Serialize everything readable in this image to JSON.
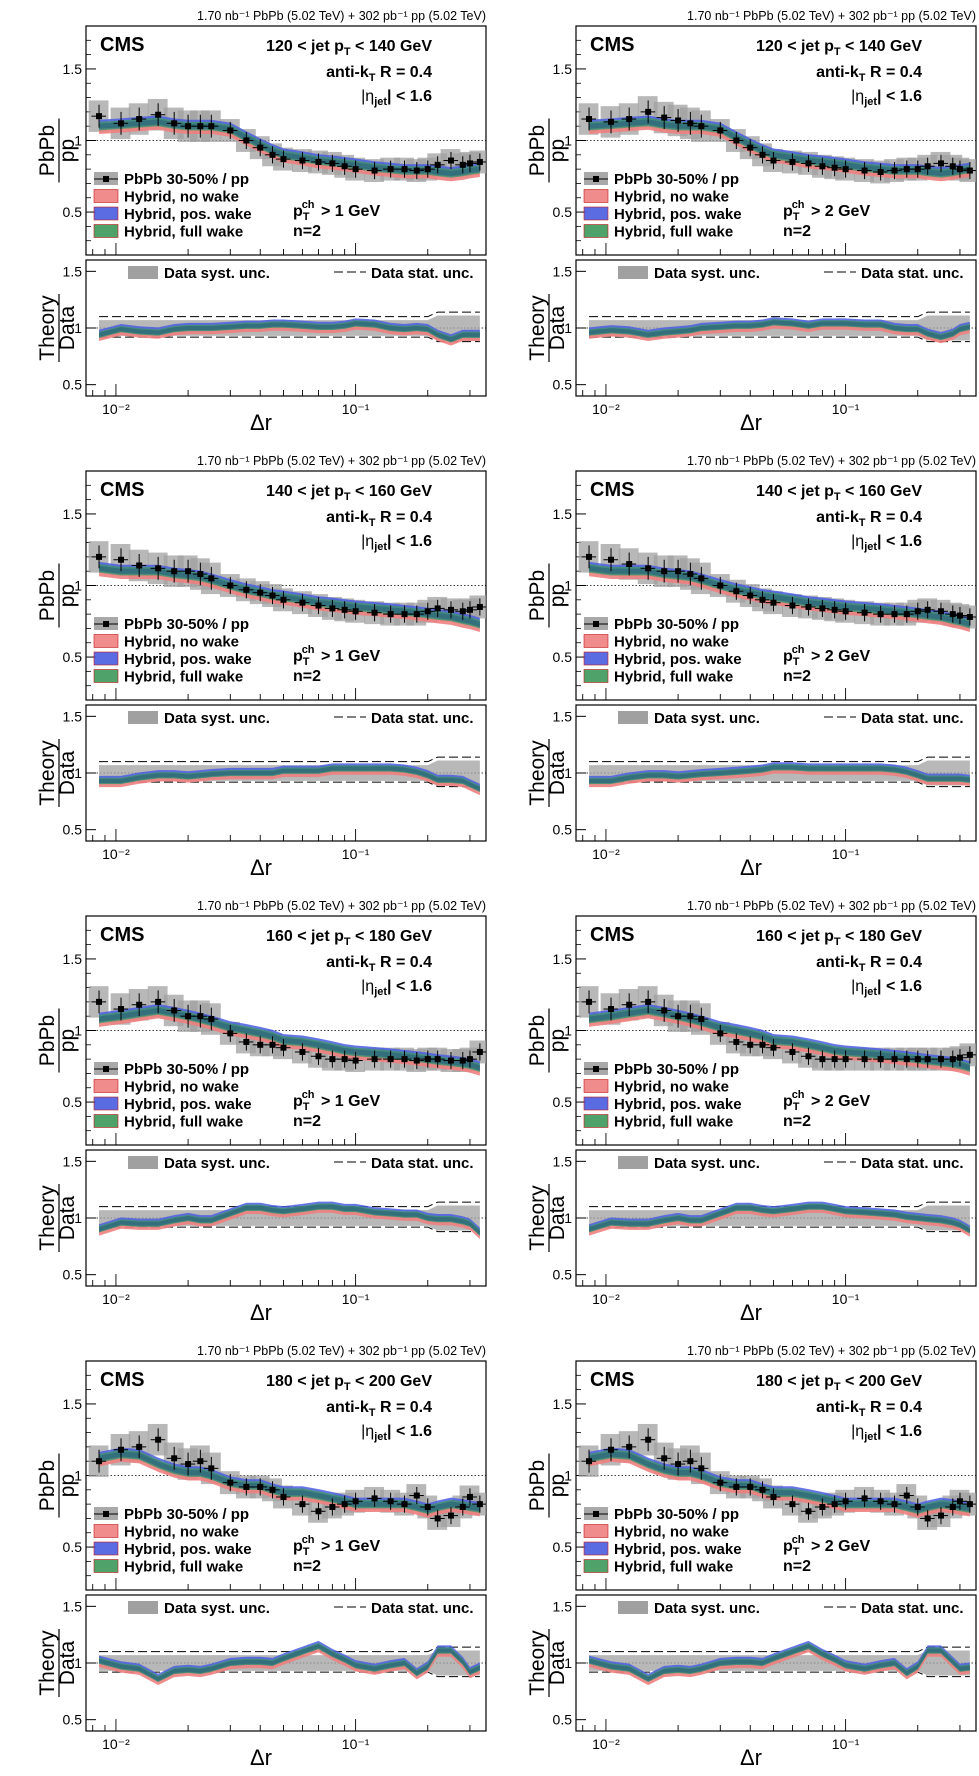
{
  "figure": {
    "lumi_text": "1.70 nb⁻¹ PbPb (5.02 TeV) + 302 pb⁻¹ pp (5.02 TeV)",
    "experiment": "CMS",
    "jet_algo": "anti-kₜ R = 0.4",
    "eta_cut": "|ηjet| < 1.6",
    "ratio_label_top": "PbPb",
    "ratio_label_bottom": "pp",
    "theory_label_top": "Theory",
    "theory_label_bottom": "Data",
    "xlabel": "Δr",
    "n_label": "n=2",
    "legend": {
      "data": "PbPb 30-50% / pp",
      "no_wake": "Hybrid, no wake",
      "pos_wake": "Hybrid, pos. wake",
      "full_wake": "Hybrid, full wake",
      "syst": "Data syst. unc.",
      "stat": "Data stat. unc."
    },
    "colors": {
      "data": "#000000",
      "syst_band": "#a0a0a0",
      "no_wake": "#f08080",
      "pos_wake": "#4a5de0",
      "full_wake": "#3c9a5a",
      "overlap": "#2e6a7a"
    },
    "upper_ylim": [
      0.2,
      1.8
    ],
    "upper_yticks": [
      "0.5",
      "1",
      "1.5"
    ],
    "lower_ylim": [
      0.4,
      1.6
    ],
    "lower_yticks": [
      "0.5",
      "1",
      "1.5"
    ],
    "xlim": [
      0.0075,
      0.35
    ],
    "xscale": "log",
    "xtick_labels": [
      "10⁻²",
      "10⁻¹"
    ]
  },
  "chart_data": [
    {
      "type": "line",
      "pt_bin": "120 < jet pT < 140 GeV",
      "track_cut": "pT ch > 1 GeV",
      "x": [
        0.0085,
        0.0105,
        0.0125,
        0.015,
        0.0175,
        0.02,
        0.0225,
        0.025,
        0.03,
        0.035,
        0.04,
        0.045,
        0.05,
        0.06,
        0.07,
        0.08,
        0.09,
        0.1,
        0.12,
        0.14,
        0.16,
        0.18,
        0.2,
        0.22,
        0.25,
        0.28,
        0.3,
        0.33
      ],
      "data_y": [
        1.17,
        1.12,
        1.15,
        1.18,
        1.12,
        1.1,
        1.1,
        1.1,
        1.07,
        1.0,
        0.95,
        0.9,
        0.87,
        0.86,
        0.85,
        0.84,
        0.82,
        0.8,
        0.79,
        0.8,
        0.8,
        0.79,
        0.8,
        0.83,
        0.86,
        0.83,
        0.84,
        0.85
      ],
      "theory_y": [
        1.1,
        1.11,
        1.12,
        1.13,
        1.11,
        1.1,
        1.1,
        1.1,
        1.08,
        1.02,
        0.97,
        0.93,
        0.9,
        0.88,
        0.86,
        0.85,
        0.84,
        0.83,
        0.81,
        0.8,
        0.79,
        0.79,
        0.79,
        0.78,
        0.77,
        0.78,
        0.79,
        0.8
      ],
      "ratio_y": [
        0.94,
        0.99,
        0.97,
        0.96,
        0.99,
        1.0,
        1.0,
        1.0,
        1.01,
        1.02,
        1.02,
        1.03,
        1.03,
        1.02,
        1.01,
        1.01,
        1.02,
        1.04,
        1.03,
        1.0,
        0.99,
        1.0,
        0.99,
        0.94,
        0.9,
        0.94,
        0.94,
        0.94
      ]
    },
    {
      "type": "line",
      "pt_bin": "120 < jet pT < 140 GeV",
      "track_cut": "pT ch > 2 GeV",
      "x": [
        0.0085,
        0.0105,
        0.0125,
        0.015,
        0.0175,
        0.02,
        0.0225,
        0.025,
        0.03,
        0.035,
        0.04,
        0.045,
        0.05,
        0.06,
        0.07,
        0.08,
        0.09,
        0.1,
        0.12,
        0.14,
        0.16,
        0.18,
        0.2,
        0.22,
        0.25,
        0.28,
        0.3,
        0.33
      ],
      "data_y": [
        1.15,
        1.13,
        1.15,
        1.2,
        1.16,
        1.14,
        1.12,
        1.1,
        1.07,
        1.0,
        0.95,
        0.9,
        0.86,
        0.85,
        0.84,
        0.82,
        0.81,
        0.8,
        0.79,
        0.78,
        0.79,
        0.8,
        0.8,
        0.82,
        0.84,
        0.82,
        0.8,
        0.79
      ],
      "theory_y": [
        1.1,
        1.11,
        1.12,
        1.13,
        1.11,
        1.1,
        1.1,
        1.1,
        1.08,
        1.02,
        0.97,
        0.93,
        0.9,
        0.88,
        0.86,
        0.85,
        0.84,
        0.83,
        0.81,
        0.8,
        0.79,
        0.79,
        0.79,
        0.78,
        0.77,
        0.78,
        0.79,
        0.8
      ],
      "ratio_y": [
        0.96,
        0.98,
        0.97,
        0.94,
        0.96,
        0.97,
        0.98,
        1.0,
        1.01,
        1.02,
        1.02,
        1.03,
        1.05,
        1.04,
        1.02,
        1.04,
        1.04,
        1.04,
        1.03,
        1.03,
        1.0,
        0.99,
        0.99,
        0.95,
        0.92,
        0.95,
        0.99,
        1.01
      ]
    },
    {
      "type": "line",
      "pt_bin": "140 < jet pT < 160 GeV",
      "track_cut": "pT ch > 1 GeV",
      "x": [
        0.0085,
        0.0105,
        0.0125,
        0.015,
        0.0175,
        0.02,
        0.0225,
        0.025,
        0.03,
        0.035,
        0.04,
        0.045,
        0.05,
        0.06,
        0.07,
        0.08,
        0.09,
        0.1,
        0.12,
        0.14,
        0.16,
        0.18,
        0.2,
        0.22,
        0.25,
        0.28,
        0.3,
        0.33
      ],
      "data_y": [
        1.2,
        1.18,
        1.14,
        1.12,
        1.1,
        1.1,
        1.08,
        1.05,
        1.0,
        0.97,
        0.95,
        0.93,
        0.9,
        0.88,
        0.86,
        0.84,
        0.83,
        0.82,
        0.81,
        0.8,
        0.8,
        0.8,
        0.82,
        0.84,
        0.83,
        0.82,
        0.83,
        0.85
      ],
      "theory_y": [
        1.12,
        1.1,
        1.1,
        1.1,
        1.08,
        1.07,
        1.06,
        1.04,
        1.0,
        0.97,
        0.95,
        0.93,
        0.92,
        0.9,
        0.88,
        0.87,
        0.86,
        0.85,
        0.84,
        0.83,
        0.82,
        0.81,
        0.8,
        0.79,
        0.78,
        0.76,
        0.75,
        0.73
      ],
      "ratio_y": [
        0.93,
        0.93,
        0.96,
        0.98,
        0.98,
        0.97,
        0.98,
        0.99,
        1.0,
        1.0,
        1.0,
        1.0,
        1.02,
        1.02,
        1.02,
        1.04,
        1.04,
        1.04,
        1.04,
        1.04,
        1.03,
        1.01,
        0.98,
        0.94,
        0.94,
        0.93,
        0.9,
        0.86
      ]
    },
    {
      "type": "line",
      "pt_bin": "140 < jet pT < 160 GeV",
      "track_cut": "pT ch > 2 GeV",
      "x": [
        0.0085,
        0.0105,
        0.0125,
        0.015,
        0.0175,
        0.02,
        0.0225,
        0.025,
        0.03,
        0.035,
        0.04,
        0.045,
        0.05,
        0.06,
        0.07,
        0.08,
        0.09,
        0.1,
        0.12,
        0.14,
        0.16,
        0.18,
        0.2,
        0.22,
        0.25,
        0.28,
        0.3,
        0.33
      ],
      "data_y": [
        1.2,
        1.18,
        1.15,
        1.12,
        1.1,
        1.1,
        1.08,
        1.05,
        1.0,
        0.96,
        0.93,
        0.9,
        0.88,
        0.86,
        0.85,
        0.84,
        0.83,
        0.82,
        0.81,
        0.8,
        0.8,
        0.8,
        0.82,
        0.83,
        0.82,
        0.8,
        0.79,
        0.78
      ],
      "theory_y": [
        1.12,
        1.1,
        1.1,
        1.1,
        1.08,
        1.07,
        1.06,
        1.04,
        1.0,
        0.97,
        0.95,
        0.93,
        0.92,
        0.9,
        0.88,
        0.87,
        0.86,
        0.85,
        0.84,
        0.83,
        0.82,
        0.81,
        0.8,
        0.79,
        0.78,
        0.76,
        0.75,
        0.73
      ],
      "ratio_y": [
        0.93,
        0.93,
        0.96,
        0.98,
        0.98,
        0.97,
        0.98,
        0.99,
        1.0,
        1.01,
        1.02,
        1.03,
        1.05,
        1.05,
        1.04,
        1.04,
        1.04,
        1.04,
        1.04,
        1.04,
        1.03,
        1.01,
        0.98,
        0.95,
        0.95,
        0.95,
        0.95,
        0.94
      ]
    },
    {
      "type": "line",
      "pt_bin": "160 < jet pT < 180 GeV",
      "track_cut": "pT ch > 1 GeV",
      "x": [
        0.0085,
        0.0105,
        0.0125,
        0.015,
        0.0175,
        0.02,
        0.0225,
        0.025,
        0.03,
        0.035,
        0.04,
        0.045,
        0.05,
        0.06,
        0.07,
        0.08,
        0.09,
        0.1,
        0.12,
        0.14,
        0.16,
        0.18,
        0.2,
        0.22,
        0.25,
        0.28,
        0.3,
        0.33
      ],
      "data_y": [
        1.2,
        1.15,
        1.18,
        1.2,
        1.14,
        1.1,
        1.1,
        1.08,
        0.98,
        0.92,
        0.9,
        0.9,
        0.88,
        0.85,
        0.82,
        0.8,
        0.8,
        0.79,
        0.8,
        0.8,
        0.8,
        0.79,
        0.8,
        0.8,
        0.79,
        0.79,
        0.8,
        0.85
      ],
      "theory_y": [
        1.08,
        1.1,
        1.12,
        1.14,
        1.12,
        1.1,
        1.08,
        1.06,
        1.02,
        1.0,
        0.98,
        0.96,
        0.93,
        0.92,
        0.9,
        0.88,
        0.86,
        0.85,
        0.84,
        0.83,
        0.82,
        0.81,
        0.8,
        0.79,
        0.78,
        0.77,
        0.76,
        0.74
      ],
      "ratio_y": [
        0.9,
        0.96,
        0.95,
        0.95,
        0.98,
        1.0,
        0.98,
        0.98,
        1.04,
        1.09,
        1.09,
        1.07,
        1.06,
        1.08,
        1.1,
        1.1,
        1.08,
        1.08,
        1.05,
        1.04,
        1.03,
        1.03,
        1.0,
        0.99,
        0.99,
        0.97,
        0.95,
        0.87
      ]
    },
    {
      "type": "line",
      "pt_bin": "160 < jet pT < 180 GeV",
      "track_cut": "pT ch > 2 GeV",
      "x": [
        0.0085,
        0.0105,
        0.0125,
        0.015,
        0.0175,
        0.02,
        0.0225,
        0.025,
        0.03,
        0.035,
        0.04,
        0.045,
        0.05,
        0.06,
        0.07,
        0.08,
        0.09,
        0.1,
        0.12,
        0.14,
        0.16,
        0.18,
        0.2,
        0.22,
        0.25,
        0.28,
        0.3,
        0.33
      ],
      "data_y": [
        1.2,
        1.15,
        1.18,
        1.2,
        1.14,
        1.1,
        1.1,
        1.08,
        0.98,
        0.92,
        0.9,
        0.9,
        0.88,
        0.85,
        0.82,
        0.8,
        0.8,
        0.8,
        0.8,
        0.8,
        0.8,
        0.8,
        0.8,
        0.8,
        0.8,
        0.8,
        0.81,
        0.83
      ],
      "theory_y": [
        1.08,
        1.1,
        1.12,
        1.14,
        1.12,
        1.1,
        1.08,
        1.06,
        1.02,
        1.0,
        0.98,
        0.96,
        0.93,
        0.92,
        0.9,
        0.88,
        0.86,
        0.85,
        0.84,
        0.83,
        0.82,
        0.81,
        0.8,
        0.79,
        0.78,
        0.77,
        0.76,
        0.74
      ],
      "ratio_y": [
        0.9,
        0.96,
        0.95,
        0.95,
        0.98,
        1.0,
        0.98,
        0.98,
        1.04,
        1.09,
        1.09,
        1.07,
        1.06,
        1.08,
        1.1,
        1.1,
        1.08,
        1.06,
        1.05,
        1.04,
        1.03,
        1.01,
        1.0,
        0.99,
        0.98,
        0.96,
        0.94,
        0.89
      ]
    },
    {
      "type": "line",
      "pt_bin": "180 < jet pT < 200 GeV",
      "track_cut": "pT ch > 1 GeV",
      "x": [
        0.0085,
        0.0105,
        0.0125,
        0.015,
        0.0175,
        0.02,
        0.0225,
        0.025,
        0.03,
        0.035,
        0.04,
        0.045,
        0.05,
        0.06,
        0.07,
        0.08,
        0.09,
        0.1,
        0.12,
        0.14,
        0.16,
        0.18,
        0.2,
        0.22,
        0.25,
        0.28,
        0.3,
        0.33
      ],
      "data_y": [
        1.1,
        1.18,
        1.2,
        1.25,
        1.12,
        1.08,
        1.1,
        1.05,
        0.95,
        0.92,
        0.92,
        0.9,
        0.85,
        0.8,
        0.75,
        0.78,
        0.8,
        0.82,
        0.84,
        0.82,
        0.8,
        0.86,
        0.78,
        0.7,
        0.72,
        0.78,
        0.85,
        0.8
      ],
      "theory_y": [
        1.12,
        1.15,
        1.14,
        1.08,
        1.04,
        1.02,
        1.02,
        1.0,
        0.95,
        0.93,
        0.93,
        0.9,
        0.88,
        0.88,
        0.86,
        0.84,
        0.82,
        0.8,
        0.8,
        0.8,
        0.8,
        0.78,
        0.76,
        0.78,
        0.8,
        0.79,
        0.78,
        0.77
      ],
      "ratio_y": [
        1.02,
        0.97,
        0.95,
        0.86,
        0.93,
        0.94,
        0.93,
        0.95,
        1.0,
        1.01,
        1.01,
        1.0,
        1.04,
        1.1,
        1.15,
        1.08,
        1.03,
        0.98,
        0.95,
        0.98,
        1.0,
        0.91,
        0.97,
        1.11,
        1.11,
        1.01,
        0.92,
        0.96
      ]
    },
    {
      "type": "line",
      "pt_bin": "180 < jet pT < 200 GeV",
      "track_cut": "pT ch > 2 GeV",
      "x": [
        0.0085,
        0.0105,
        0.0125,
        0.015,
        0.0175,
        0.02,
        0.0225,
        0.025,
        0.03,
        0.035,
        0.04,
        0.045,
        0.05,
        0.06,
        0.07,
        0.08,
        0.09,
        0.1,
        0.12,
        0.14,
        0.16,
        0.18,
        0.2,
        0.22,
        0.25,
        0.28,
        0.3,
        0.33
      ],
      "data_y": [
        1.1,
        1.18,
        1.2,
        1.25,
        1.12,
        1.08,
        1.1,
        1.05,
        0.95,
        0.92,
        0.92,
        0.9,
        0.85,
        0.8,
        0.75,
        0.78,
        0.8,
        0.82,
        0.84,
        0.82,
        0.8,
        0.86,
        0.78,
        0.7,
        0.72,
        0.78,
        0.82,
        0.8
      ],
      "theory_y": [
        1.12,
        1.15,
        1.14,
        1.08,
        1.04,
        1.02,
        1.02,
        1.0,
        0.95,
        0.93,
        0.93,
        0.9,
        0.88,
        0.88,
        0.86,
        0.84,
        0.82,
        0.8,
        0.8,
        0.8,
        0.8,
        0.78,
        0.76,
        0.78,
        0.8,
        0.79,
        0.78,
        0.77
      ],
      "ratio_y": [
        1.02,
        0.97,
        0.95,
        0.86,
        0.93,
        0.94,
        0.93,
        0.95,
        1.0,
        1.01,
        1.01,
        1.0,
        1.04,
        1.1,
        1.15,
        1.08,
        1.03,
        0.98,
        0.95,
        0.98,
        1.0,
        0.91,
        0.97,
        1.11,
        1.11,
        1.01,
        0.95,
        0.96
      ]
    }
  ]
}
